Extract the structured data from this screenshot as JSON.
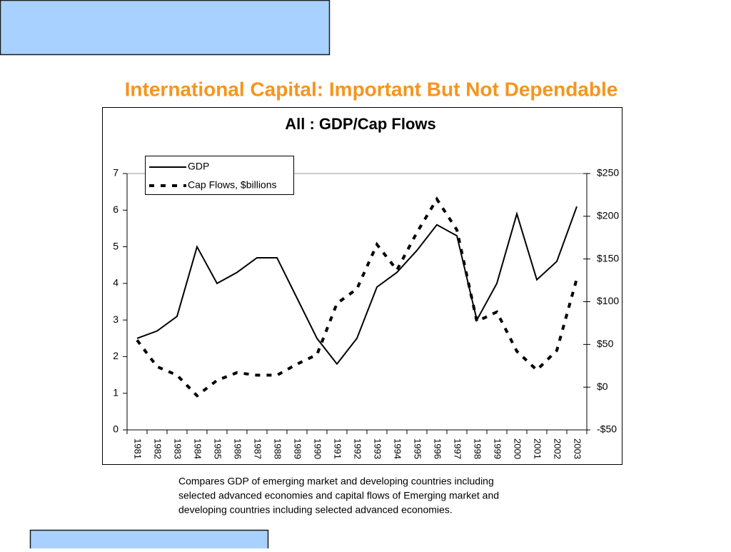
{
  "slide_title": "International Capital: Important But Not Dependable",
  "caption": [
    "Compares GDP of emerging market and developing countries including",
    "selected advanced economies and capital flows of Emerging market and",
    "developing countries including selected advanced economies."
  ],
  "chart_data": {
    "type": "line",
    "title": "All : GDP/Cap Flows",
    "categories": [
      "1981",
      "1982",
      "1983",
      "1984",
      "1985",
      "1986",
      "1987",
      "1988",
      "1989",
      "1990",
      "1991",
      "1992",
      "1993",
      "1994",
      "1995",
      "1996",
      "1997",
      "1998",
      "1999",
      "2000",
      "2001",
      "2002",
      "2003"
    ],
    "series": [
      {
        "name": "GDP",
        "color": "#000000",
        "dashed": false,
        "values": [
          2.5,
          2.7,
          3.1,
          5.0,
          4.0,
          4.3,
          4.7,
          4.7,
          3.6,
          2.5,
          1.8,
          2.5,
          3.9,
          4.3,
          4.9,
          5.6,
          5.3,
          3.0,
          4.0,
          5.9,
          4.1,
          4.6,
          6.1
        ]
      },
      {
        "name": "Cap Flows, $billions",
        "color": "#000000",
        "dashed": true,
        "axis": "y2",
        "values": [
          55,
          24,
          14,
          -10,
          8,
          17,
          14,
          14,
          27,
          38,
          98,
          115,
          167,
          137,
          181,
          220,
          184,
          77,
          88,
          42,
          20,
          43,
          127
        ]
      }
    ],
    "ylim": [
      0,
      7
    ],
    "yticks": [
      0,
      1,
      2,
      3,
      4,
      5,
      6,
      7
    ],
    "y2lim": [
      -50,
      250
    ],
    "y2ticks": [
      {
        "value": -50,
        "label": "-$50"
      },
      {
        "value": 0,
        "label": "$0"
      },
      {
        "value": 50,
        "label": "$50"
      },
      {
        "value": 100,
        "label": "$100"
      },
      {
        "value": 150,
        "label": "$150"
      },
      {
        "value": 200,
        "label": "$200"
      },
      {
        "value": 250,
        "label": "$250"
      }
    ],
    "legend": "top-left"
  }
}
